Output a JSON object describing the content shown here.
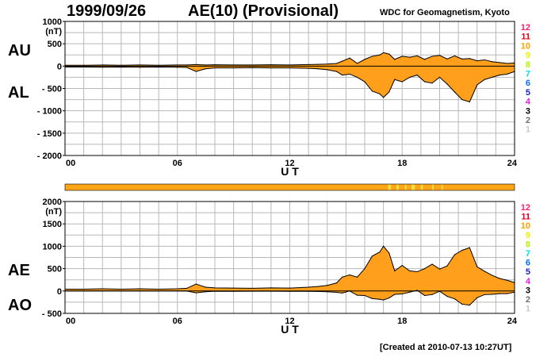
{
  "header": {
    "date": "1999/09/26",
    "title": "AE(10) (Provisional)",
    "source": "WDC for Geomagnetism, Kyoto"
  },
  "footer": {
    "created": "[Created at 2010-07-13 10:27UT]"
  },
  "colors": {
    "fill": "#ff9f1c",
    "quality_bar": "#ffa518",
    "highlight": "#ffe040",
    "grid": "#b8b8b8"
  },
  "quality_scale": [
    {
      "label": "12",
      "color": "#ff1f6a"
    },
    {
      "label": "11",
      "color": "#e0001c"
    },
    {
      "label": "10",
      "color": "#ffa000"
    },
    {
      "label": "9",
      "color": "#f0f000"
    },
    {
      "label": "8",
      "color": "#b8f000"
    },
    {
      "label": "7",
      "color": "#00e0e0"
    },
    {
      "label": "6",
      "color": "#0070ff"
    },
    {
      "label": "5",
      "color": "#2020c0"
    },
    {
      "label": "4",
      "color": "#e020e0"
    },
    {
      "label": "3",
      "color": "#000000"
    },
    {
      "label": "2",
      "color": "#707070"
    },
    {
      "label": "1",
      "color": "#c8c8c8"
    }
  ],
  "chart_data": [
    {
      "type": "area",
      "panel": "AU/AL",
      "labels": {
        "upper": "AU",
        "lower": "AL",
        "unit": "(nT)"
      },
      "xlabel": "U T",
      "xlim": [
        0,
        24
      ],
      "x_ticks": [
        "00",
        "06",
        "12",
        "18",
        "24"
      ],
      "ylim": [
        -2000,
        1000
      ],
      "y_ticks": [
        "1000",
        "500",
        "0",
        "- 500",
        "- 1000",
        "- 1500",
        "- 2000"
      ],
      "grid": true,
      "series": [
        {
          "name": "AU",
          "x": [
            0,
            1,
            2,
            3,
            4,
            5,
            6,
            6.5,
            7,
            7.5,
            8,
            9,
            10,
            11,
            12,
            13,
            13.5,
            14,
            14.5,
            14.8,
            15.2,
            15.6,
            16,
            16.4,
            16.8,
            17,
            17.3,
            17.6,
            18,
            18.4,
            18.8,
            19.2,
            19.6,
            20,
            20.4,
            20.8,
            21.2,
            21.6,
            22,
            22.4,
            22.8,
            23.2,
            23.6,
            24
          ],
          "values": [
            20,
            20,
            25,
            20,
            25,
            20,
            25,
            25,
            35,
            25,
            30,
            25,
            25,
            30,
            25,
            35,
            40,
            45,
            60,
            110,
            180,
            60,
            150,
            220,
            250,
            300,
            270,
            150,
            220,
            200,
            230,
            150,
            220,
            240,
            160,
            230,
            160,
            170,
            120,
            140,
            100,
            80,
            60,
            70
          ]
        },
        {
          "name": "AL",
          "x": [
            0,
            1,
            2,
            3,
            4,
            5,
            6,
            6.5,
            7,
            7.5,
            8,
            9,
            10,
            11,
            12,
            13,
            13.5,
            14,
            14.5,
            14.8,
            15.2,
            15.6,
            16,
            16.4,
            16.8,
            17,
            17.3,
            17.6,
            18,
            18.4,
            18.8,
            19.2,
            19.6,
            20,
            20.4,
            20.8,
            21.2,
            21.6,
            22,
            22.4,
            22.8,
            23.2,
            23.6,
            24
          ],
          "values": [
            -20,
            -20,
            -25,
            -20,
            -25,
            -20,
            -25,
            -30,
            -120,
            -60,
            -40,
            -40,
            -35,
            -40,
            -40,
            -50,
            -60,
            -80,
            -120,
            -200,
            -180,
            -250,
            -350,
            -560,
            -620,
            -700,
            -580,
            -300,
            -350,
            -250,
            -200,
            -350,
            -380,
            -250,
            -400,
            -580,
            -750,
            -800,
            -420,
            -300,
            -250,
            -200,
            -180,
            -120
          ]
        }
      ]
    },
    {
      "type": "area",
      "panel": "AE/AO",
      "labels": {
        "upper": "AE",
        "lower": "AO",
        "unit": "(nT)"
      },
      "xlabel": "U T",
      "xlim": [
        0,
        24
      ],
      "x_ticks": [
        "00",
        "06",
        "12",
        "18",
        "24"
      ],
      "ylim": [
        -500,
        2000
      ],
      "y_ticks": [
        "2000",
        "1500",
        "1000",
        "500",
        "0",
        "- 500"
      ],
      "grid": true,
      "series": [
        {
          "name": "AE",
          "x": [
            0,
            1,
            2,
            3,
            4,
            5,
            6,
            6.5,
            7,
            7.5,
            8,
            9,
            10,
            11,
            12,
            13,
            13.5,
            14,
            14.5,
            14.8,
            15.2,
            15.6,
            16,
            16.4,
            16.8,
            17,
            17.3,
            17.6,
            18,
            18.4,
            18.8,
            19.2,
            19.6,
            20,
            20.4,
            20.8,
            21.2,
            21.6,
            22,
            22.4,
            22.8,
            23.2,
            23.6,
            24
          ],
          "values": [
            40,
            40,
            50,
            40,
            50,
            40,
            50,
            60,
            155,
            85,
            70,
            65,
            60,
            70,
            65,
            85,
            100,
            125,
            180,
            310,
            360,
            310,
            500,
            780,
            870,
            1000,
            850,
            450,
            570,
            450,
            430,
            500,
            600,
            490,
            560,
            810,
            910,
            970,
            540,
            440,
            350,
            280,
            240,
            190
          ]
        },
        {
          "name": "AO",
          "x": [
            0,
            1,
            2,
            3,
            4,
            5,
            6,
            6.5,
            7,
            7.5,
            8,
            9,
            10,
            11,
            12,
            13,
            13.5,
            14,
            14.5,
            14.8,
            15.2,
            15.6,
            16,
            16.4,
            16.8,
            17,
            17.3,
            17.6,
            18,
            18.4,
            18.8,
            19.2,
            19.6,
            20,
            20.4,
            20.8,
            21.2,
            21.6,
            22,
            22.4,
            22.8,
            23.2,
            23.6,
            24
          ],
          "values": [
            0,
            0,
            0,
            0,
            0,
            0,
            0,
            -2,
            -42,
            -17,
            -5,
            -7,
            -5,
            -5,
            -7,
            -7,
            -10,
            -17,
            -30,
            -45,
            0,
            -95,
            -100,
            -170,
            -185,
            -200,
            -155,
            -75,
            -65,
            -25,
            15,
            -100,
            -80,
            -5,
            -120,
            -175,
            -295,
            -315,
            -150,
            -80,
            -75,
            -60,
            -60,
            -25
          ]
        }
      ]
    }
  ]
}
